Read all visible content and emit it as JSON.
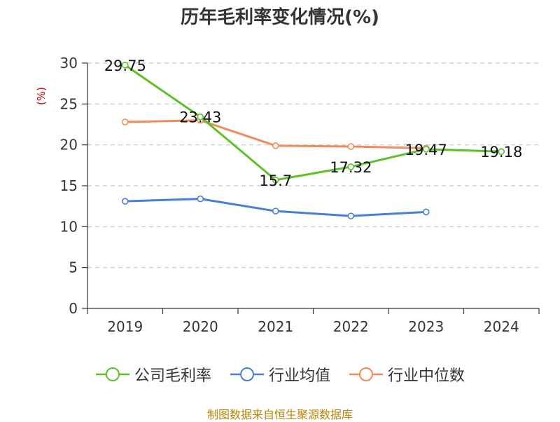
{
  "chart_data": {
    "type": "line",
    "title": "历年毛利率变化情况(%)",
    "ylabel": "(%)",
    "xlabel": "",
    "categories": [
      "2019",
      "2020",
      "2021",
      "2022",
      "2023",
      "2024"
    ],
    "ylim": [
      0,
      30
    ],
    "yticks": [
      0,
      5,
      10,
      15,
      20,
      25,
      30
    ],
    "grid": "horizontal-dashed",
    "legend_position": "bottom",
    "series": [
      {
        "name": "公司毛利率",
        "color": "#5cc126",
        "values": [
          29.75,
          23.43,
          15.7,
          17.32,
          19.47,
          19.18
        ],
        "labels": [
          "29.75",
          "23.43",
          "15.7",
          "17.32",
          "19.47",
          "19.18"
        ]
      },
      {
        "name": "行业均值",
        "color": "#4a7fd6",
        "values": [
          13.1,
          13.4,
          11.9,
          11.3,
          11.8,
          null
        ]
      },
      {
        "name": "行业中位数",
        "color": "#f28b5a",
        "values": [
          22.8,
          23.0,
          19.9,
          19.8,
          19.6,
          null
        ]
      }
    ]
  },
  "footer": {
    "source": "制图数据来自恒生聚源数据库"
  }
}
